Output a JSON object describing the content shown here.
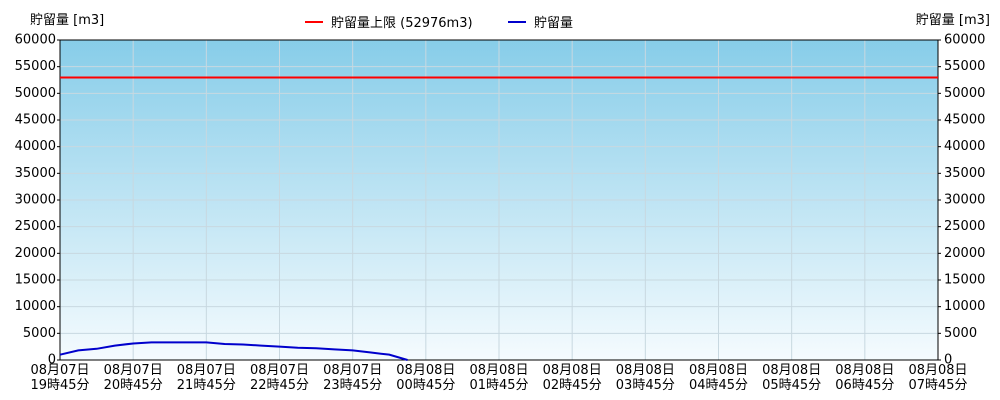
{
  "chart_data": {
    "type": "line",
    "y_label": "貯留量 [m3]",
    "y2_label": "貯留量 [m3]",
    "categories": [
      "08月07日\n19時45分",
      null,
      null,
      null,
      "08月07日\n20時45分",
      null,
      null,
      null,
      "08月07日\n21時45分",
      null,
      null,
      null,
      "08月07日\n22時45分",
      null,
      null,
      null,
      "08月07日\n23時45分",
      null,
      null,
      null,
      "08月08日\n00時45分",
      null,
      null,
      null,
      "08月08日\n01時45分",
      null,
      null,
      null,
      "08月08日\n02時45分",
      null,
      null,
      null,
      "08月08日\n03時45分",
      null,
      null,
      null,
      "08月08日\n04時45分",
      null,
      null,
      null,
      "08月08日\n05時45分",
      null,
      null,
      null,
      "08月08日\n06時45分",
      null,
      null,
      null,
      "08月08日\n07時45分"
    ],
    "series": [
      {
        "name": "貯留量上限 (52976m3)",
        "color": "#ff0000",
        "values": [
          52976,
          52976,
          52976,
          52976,
          52976,
          52976,
          52976,
          52976,
          52976,
          52976,
          52976,
          52976,
          52976,
          52976,
          52976,
          52976,
          52976,
          52976,
          52976,
          52976,
          52976,
          52976,
          52976,
          52976,
          52976,
          52976,
          52976,
          52976,
          52976,
          52976,
          52976,
          52976,
          52976,
          52976,
          52976,
          52976,
          52976,
          52976,
          52976,
          52976,
          52976,
          52976,
          52976,
          52976,
          52976,
          52976,
          52976,
          52976,
          52976
        ]
      },
      {
        "name": "貯留量",
        "color": "#0000cc",
        "values": [
          1000,
          1800,
          2100,
          2700,
          3100,
          3300,
          3300,
          3300,
          3300,
          3000,
          2900,
          2700,
          2500,
          2300,
          2200,
          2000,
          1800,
          1400,
          1000,
          0,
          null,
          null,
          null,
          null,
          null,
          null,
          null,
          null,
          null,
          null,
          null,
          null,
          null,
          null,
          null,
          null,
          null,
          null,
          null,
          null,
          null,
          null,
          null,
          null,
          null,
          null,
          null,
          null,
          null
        ]
      }
    ],
    "ylim": [
      0,
      60000
    ],
    "yticks": [
      0,
      5000,
      10000,
      15000,
      20000,
      25000,
      30000,
      35000,
      40000,
      45000,
      50000,
      55000,
      60000
    ],
    "y2lim": [
      0,
      60000
    ],
    "y2ticks": [
      0,
      5000,
      10000,
      15000,
      20000,
      25000,
      30000,
      35000,
      40000,
      45000,
      50000,
      55000,
      60000
    ],
    "grid": true
  }
}
